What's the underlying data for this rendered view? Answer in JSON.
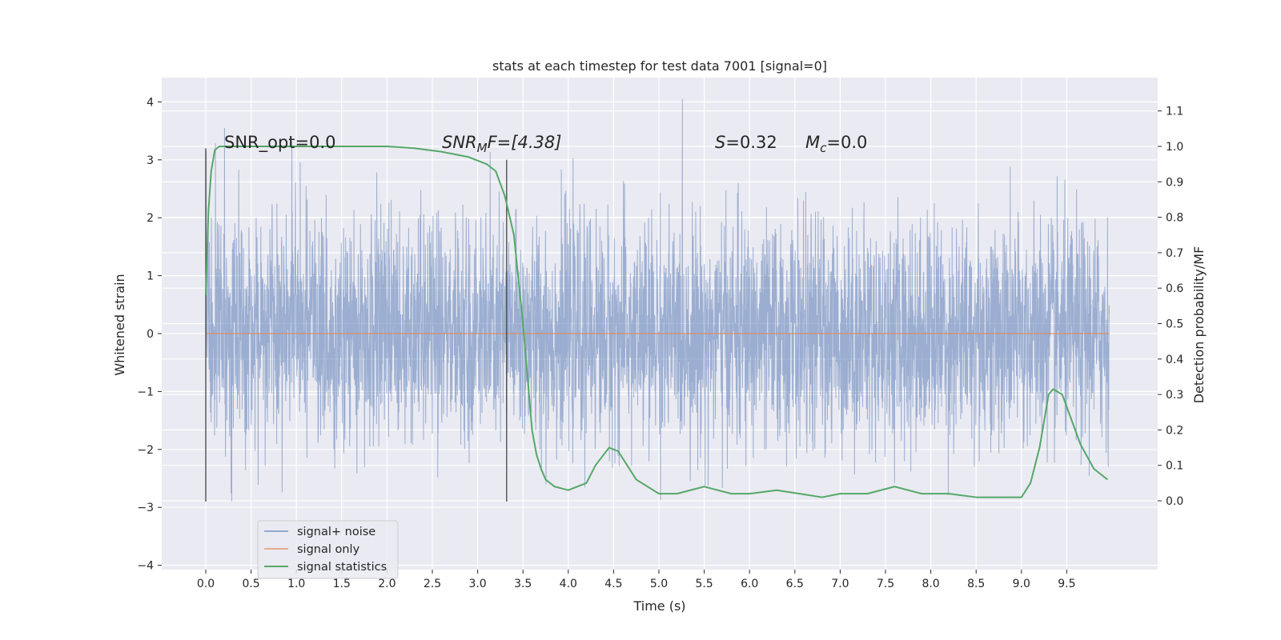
{
  "chart_data": {
    "type": "line",
    "title": "stats at each timestep for test data 7001 [signal=0]",
    "xlabel": "Time (s)",
    "ylabel": "Whitened strain",
    "y2label": "Detection probability/MF",
    "xlim": [
      -0.48,
      10.45
    ],
    "ylim": [
      -4.1,
      4.4
    ],
    "y2lim": [
      -0.15,
      1.2
    ],
    "x_ticks": [
      "0.0",
      "0.5",
      "1.0",
      "1.5",
      "2.0",
      "2.5",
      "3.0",
      "3.5",
      "4.0",
      "4.5",
      "5.0",
      "5.5",
      "6.0",
      "6.5",
      "7.0",
      "7.5",
      "8.0",
      "8.5",
      "9.0",
      "9.5"
    ],
    "y_ticks": [
      "4",
      "3",
      "2",
      "1",
      "0",
      "−1",
      "−2",
      "−3",
      "−4"
    ],
    "y2_ticks": [
      "1.1",
      "1.0",
      "0.9",
      "0.8",
      "0.7",
      "0.6",
      "0.5",
      "0.4",
      "0.3",
      "0.2",
      "0.1",
      "0.0"
    ],
    "grid": true,
    "legend_position": "lower-left",
    "annotations": {
      "snr_opt": "SNR_opt=0.0",
      "snr_mf_base": "SNR",
      "snr_mf_sub": "M",
      "snr_mf_tail": "F=[4.38]",
      "s_var": "S",
      "s_val": "=0.32",
      "mc_var": "M",
      "mc_sub": "c",
      "mc_val": "=0.0"
    },
    "vertical_markers": [
      {
        "x": 0.0,
        "y_range": [
          -2.9,
          3.2
        ]
      },
      {
        "x": 3.32,
        "y_range": [
          -2.9,
          3.0
        ]
      }
    ],
    "series": [
      {
        "name": "signal+ noise",
        "axis": "left",
        "color": "#4c72b0",
        "opacity": 0.5,
        "x_range": [
          0.0,
          9.97
        ],
        "amplitude_envelope": [
          -3.7,
          4.05
        ],
        "description_values": "noise-like whitened strain, typical range ±2"
      },
      {
        "name": "signal only",
        "axis": "left",
        "color": "#dd8452",
        "x": [
          0.0,
          9.97
        ],
        "y": [
          0.0,
          0.0
        ]
      },
      {
        "name": "signal statistics",
        "axis": "right",
        "color": "#55a868",
        "x": [
          0.0,
          0.03,
          0.06,
          0.1,
          0.15,
          0.2,
          0.3,
          0.5,
          1.0,
          1.5,
          2.0,
          2.3,
          2.6,
          2.9,
          3.1,
          3.2,
          3.3,
          3.4,
          3.5,
          3.55,
          3.6,
          3.65,
          3.7,
          3.75,
          3.85,
          4.0,
          4.2,
          4.3,
          4.45,
          4.55,
          4.65,
          4.75,
          5.0,
          5.2,
          5.5,
          5.8,
          6.0,
          6.3,
          6.55,
          6.8,
          7.0,
          7.3,
          7.6,
          7.9,
          8.2,
          8.5,
          9.0,
          9.1,
          9.2,
          9.3,
          9.35,
          9.45,
          9.55,
          9.65,
          9.8,
          9.9,
          9.95
        ],
        "y": [
          0.58,
          0.82,
          0.93,
          0.99,
          1.0,
          1.0,
          1.0,
          1.0,
          1.0,
          1.0,
          1.0,
          0.995,
          0.985,
          0.97,
          0.95,
          0.93,
          0.86,
          0.75,
          0.5,
          0.35,
          0.2,
          0.13,
          0.09,
          0.06,
          0.04,
          0.03,
          0.05,
          0.1,
          0.15,
          0.14,
          0.1,
          0.06,
          0.02,
          0.02,
          0.04,
          0.02,
          0.02,
          0.03,
          0.02,
          0.01,
          0.02,
          0.02,
          0.04,
          0.02,
          0.02,
          0.01,
          0.01,
          0.05,
          0.15,
          0.3,
          0.315,
          0.3,
          0.23,
          0.16,
          0.09,
          0.07,
          0.06
        ]
      }
    ]
  }
}
